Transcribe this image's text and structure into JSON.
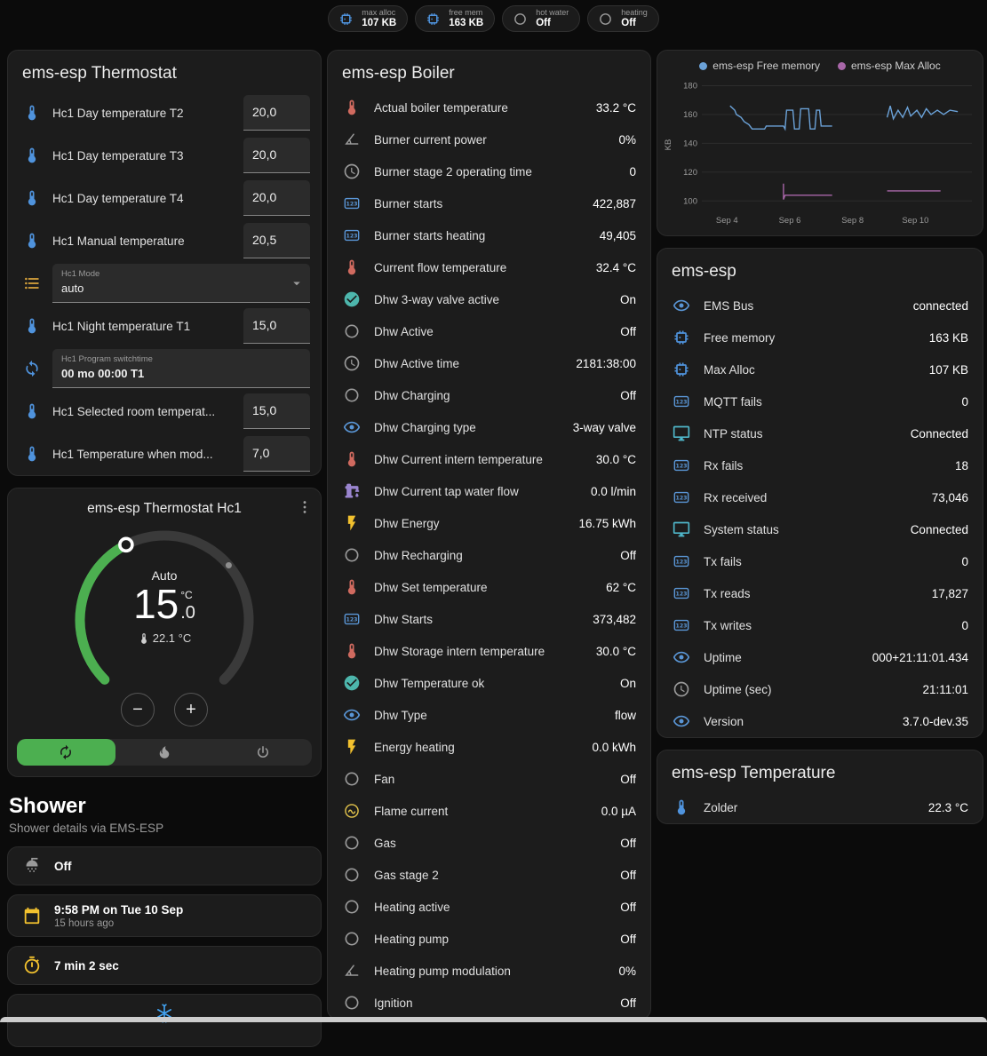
{
  "theme": {
    "background": "#0b0b0b",
    "card": "#1c1c1c",
    "accent_green": "#4caf50",
    "icon_blue": "#4f93dd",
    "icon_grey": "#9a9a9a",
    "icon_amber": "#f2c12e"
  },
  "top_badges": [
    {
      "icon": "chip",
      "icon_color": "#4f93dd",
      "label": "max alloc",
      "value": "107 KB"
    },
    {
      "icon": "chip",
      "icon_color": "#4f93dd",
      "label": "free mem",
      "value": "163 KB"
    },
    {
      "icon": "circle",
      "icon_color": "#9a9a9a",
      "label": "hot water",
      "value": "Off"
    },
    {
      "icon": "circle",
      "icon_color": "#9a9a9a",
      "label": "heating",
      "value": "Off"
    }
  ],
  "thermostat_card": {
    "title": "ems-esp Thermostat",
    "rows": [
      {
        "type": "number",
        "icon": "thermometer",
        "color": "#4f93dd",
        "label": "Hc1 Day temperature T2",
        "value": "20,0"
      },
      {
        "type": "number",
        "icon": "thermometer",
        "color": "#4f93dd",
        "label": "Hc1 Day temperature T3",
        "value": "20,0"
      },
      {
        "type": "number",
        "icon": "thermometer",
        "color": "#4f93dd",
        "label": "Hc1 Day temperature T4",
        "value": "20,0"
      },
      {
        "type": "number",
        "icon": "thermometer",
        "color": "#4f93dd",
        "label": "Hc1 Manual temperature",
        "value": "20,5"
      },
      {
        "type": "select",
        "icon": "list",
        "color": "#d9a43c",
        "label": "Hc1 Mode",
        "field_label": "Hc1 Mode",
        "value": "auto"
      },
      {
        "type": "number",
        "icon": "thermometer",
        "color": "#4f93dd",
        "label": "Hc1 Night temperature T1",
        "value": "15,0"
      },
      {
        "type": "text",
        "icon": "sync",
        "color": "#4f93dd",
        "label": "Hc1 Program switchtime",
        "field_label": "Hc1 Program switchtime",
        "value": "00 mo 00:00 T1"
      },
      {
        "type": "number",
        "icon": "thermometer",
        "color": "#4f93dd",
        "label": "Hc1 Selected room temperat...",
        "value": "15,0"
      },
      {
        "type": "number",
        "icon": "thermometer",
        "color": "#4f93dd",
        "label": "Hc1 Temperature when mod...",
        "value": "7,0"
      }
    ]
  },
  "thermostat_hc1": {
    "title": "ems-esp Thermostat Hc1",
    "mode_label": "Auto",
    "target_int": "15",
    "target_dec": ".0",
    "unit": "°C",
    "current_display": "22.1 °C",
    "min": 5,
    "max": 30,
    "target": 15,
    "current_temp": 22.1,
    "arc_color": "#4caf50",
    "track_color": "#3a3a3a",
    "mode_buttons": [
      {
        "name": "auto",
        "icon": "autorenew",
        "active": true
      },
      {
        "name": "heat",
        "icon": "fire",
        "active": false
      },
      {
        "name": "off",
        "icon": "power",
        "active": false
      }
    ],
    "active_bg": "#4caf50"
  },
  "shower": {
    "title": "Shower",
    "subtitle": "Shower details via EMS-ESP",
    "cards": [
      {
        "icon": "shower",
        "color": "#9a9a9a",
        "primary": "Off",
        "secondary": ""
      },
      {
        "icon": "calendar",
        "color": "#f2c12e",
        "primary": "9:58 PM on Tue 10 Sep",
        "secondary": "15 hours ago"
      },
      {
        "icon": "timer",
        "color": "#f2c12e",
        "primary": "7 min 2 sec",
        "secondary": ""
      },
      {
        "icon": "snowflake",
        "color": "#42a5f5",
        "primary": "",
        "secondary": "",
        "partial": true
      }
    ]
  },
  "boiler_card": {
    "title": "ems-esp Boiler",
    "rows": [
      {
        "icon": "thermometer",
        "color": "#d06a5f",
        "label": "Actual boiler temperature",
        "value": "33.2 °C"
      },
      {
        "icon": "angle",
        "color": "#9a9a9a",
        "label": "Burner current power",
        "value": "0%"
      },
      {
        "icon": "clock",
        "color": "#9a9a9a",
        "label": "Burner stage 2 operating time",
        "value": "0"
      },
      {
        "icon": "counter",
        "color": "#5a96d6",
        "label": "Burner starts",
        "value": "422,887"
      },
      {
        "icon": "counter",
        "color": "#5a96d6",
        "label": "Burner starts heating",
        "value": "49,405"
      },
      {
        "icon": "thermometer",
        "color": "#d06a5f",
        "label": "Current flow temperature",
        "value": "32.4 °C"
      },
      {
        "icon": "check-circle",
        "color": "#4db6ac",
        "label": "Dhw 3-way valve active",
        "value": "On"
      },
      {
        "icon": "circle",
        "color": "#9a9a9a",
        "label": "Dhw Active",
        "value": "Off"
      },
      {
        "icon": "clock",
        "color": "#9a9a9a",
        "label": "Dhw Active time",
        "value": "2181:38:00"
      },
      {
        "icon": "circle",
        "color": "#9a9a9a",
        "label": "Dhw Charging",
        "value": "Off"
      },
      {
        "icon": "eye",
        "color": "#5a96d6",
        "label": "Dhw Charging type",
        "value": "3-way valve"
      },
      {
        "icon": "thermometer",
        "color": "#d06a5f",
        "label": "Dhw Current intern temperature",
        "value": "30.0 °C"
      },
      {
        "icon": "pump",
        "color": "#9a85cf",
        "label": "Dhw Current tap water flow",
        "value": "0.0 l/min"
      },
      {
        "icon": "flash",
        "color": "#f2c12e",
        "label": "Dhw Energy",
        "value": "16.75 kWh"
      },
      {
        "icon": "circle",
        "color": "#9a9a9a",
        "label": "Dhw Recharging",
        "value": "Off"
      },
      {
        "icon": "thermometer",
        "color": "#d06a5f",
        "label": "Dhw Set temperature",
        "value": "62 °C"
      },
      {
        "icon": "counter",
        "color": "#5a96d6",
        "label": "Dhw Starts",
        "value": "373,482"
      },
      {
        "icon": "thermometer",
        "color": "#d06a5f",
        "label": "Dhw Storage intern temperature",
        "value": "30.0 °C"
      },
      {
        "icon": "check-circle",
        "color": "#4db6ac",
        "label": "Dhw Temperature ok",
        "value": "On"
      },
      {
        "icon": "eye",
        "color": "#5a96d6",
        "label": "Dhw Type",
        "value": "flow"
      },
      {
        "icon": "flash",
        "color": "#f2c12e",
        "label": "Energy heating",
        "value": "0.0 kWh"
      },
      {
        "icon": "circle",
        "color": "#9a9a9a",
        "label": "Fan",
        "value": "Off"
      },
      {
        "icon": "current",
        "color": "#e3c44c",
        "label": "Flame current",
        "value": "0.0 µA"
      },
      {
        "icon": "circle",
        "color": "#9a9a9a",
        "label": "Gas",
        "value": "Off"
      },
      {
        "icon": "circle",
        "color": "#9a9a9a",
        "label": "Gas stage 2",
        "value": "Off"
      },
      {
        "icon": "circle",
        "color": "#9a9a9a",
        "label": "Heating active",
        "value": "Off"
      },
      {
        "icon": "circle",
        "color": "#9a9a9a",
        "label": "Heating pump",
        "value": "Off"
      },
      {
        "icon": "angle",
        "color": "#9a9a9a",
        "label": "Heating pump modulation",
        "value": "0%"
      },
      {
        "icon": "circle",
        "color": "#9a9a9a",
        "label": "Ignition",
        "value": "Off"
      }
    ]
  },
  "emsesp_card": {
    "title": "ems-esp",
    "rows": [
      {
        "icon": "eye",
        "color": "#5a96d6",
        "label": "EMS Bus",
        "value": "connected"
      },
      {
        "icon": "chip",
        "color": "#4f93dd",
        "label": "Free memory",
        "value": "163 KB"
      },
      {
        "icon": "chip",
        "color": "#4f93dd",
        "label": "Max Alloc",
        "value": "107 KB"
      },
      {
        "icon": "counter",
        "color": "#5a96d6",
        "label": "MQTT fails",
        "value": "0"
      },
      {
        "icon": "monitor",
        "color": "#4fb6c9",
        "label": "NTP status",
        "value": "Connected"
      },
      {
        "icon": "counter",
        "color": "#5a96d6",
        "label": "Rx fails",
        "value": "18"
      },
      {
        "icon": "counter",
        "color": "#5a96d6",
        "label": "Rx received",
        "value": "73,046"
      },
      {
        "icon": "monitor",
        "color": "#4fb6c9",
        "label": "System status",
        "value": "Connected"
      },
      {
        "icon": "counter",
        "color": "#5a96d6",
        "label": "Tx fails",
        "value": "0"
      },
      {
        "icon": "counter",
        "color": "#5a96d6",
        "label": "Tx reads",
        "value": "17,827"
      },
      {
        "icon": "counter",
        "color": "#5a96d6",
        "label": "Tx writes",
        "value": "0"
      },
      {
        "icon": "eye",
        "color": "#5a96d6",
        "label": "Uptime",
        "value": "000+21:11:01.434"
      },
      {
        "icon": "clock",
        "color": "#9a9a9a",
        "label": "Uptime (sec)",
        "value": "21:11:01"
      },
      {
        "icon": "eye",
        "color": "#5a96d6",
        "label": "Version",
        "value": "3.7.0-dev.35"
      }
    ]
  },
  "temperature_card": {
    "title": "ems-esp Temperature",
    "rows": [
      {
        "icon": "thermometer",
        "color": "#4f93dd",
        "label": "Zolder",
        "value": "22.3 °C"
      }
    ]
  },
  "chart_data": {
    "type": "line",
    "title": "",
    "ylabel": "KB",
    "ylim": [
      94,
      184
    ],
    "yticks": [
      100,
      120,
      140,
      160,
      180
    ],
    "x_domain": [
      0,
      8.6
    ],
    "xticks": [
      {
        "pos": 0.8,
        "label": "Sep 4"
      },
      {
        "pos": 2.8,
        "label": "Sep 6"
      },
      {
        "pos": 4.8,
        "label": "Sep 8"
      },
      {
        "pos": 6.8,
        "label": "Sep 10"
      }
    ],
    "grid": true,
    "legend_position": "top",
    "legend": [
      {
        "name": "ems-esp Free memory",
        "color": "#6ba2d8"
      },
      {
        "name": "ems-esp Max Alloc",
        "color": "#a866a8"
      }
    ],
    "series": [
      {
        "name": "ems-esp Free memory",
        "color": "#6ba2d8",
        "points": [
          [
            0.9,
            166
          ],
          [
            1.05,
            163
          ],
          [
            1.1,
            160
          ],
          [
            1.25,
            158
          ],
          [
            1.35,
            155
          ],
          [
            1.5,
            153
          ],
          [
            1.6,
            150
          ],
          [
            2.0,
            150
          ],
          [
            2.05,
            152
          ],
          [
            2.6,
            152
          ],
          [
            2.65,
            150
          ],
          [
            2.7,
            163
          ],
          [
            2.9,
            163
          ],
          [
            2.95,
            150
          ],
          [
            3.1,
            150
          ],
          [
            3.15,
            164
          ],
          [
            3.4,
            164
          ],
          [
            3.45,
            150
          ],
          [
            3.6,
            150
          ],
          [
            3.65,
            163
          ],
          [
            3.75,
            163
          ],
          [
            3.8,
            152
          ],
          [
            4.15,
            152
          ],
          null,
          [
            5.9,
            158
          ],
          [
            6.0,
            166
          ],
          [
            6.1,
            157
          ],
          [
            6.25,
            163
          ],
          [
            6.4,
            158
          ],
          [
            6.55,
            165
          ],
          [
            6.65,
            159
          ],
          [
            6.85,
            163
          ],
          [
            7.0,
            158
          ],
          [
            7.15,
            164
          ],
          [
            7.3,
            160
          ],
          [
            7.5,
            163
          ],
          [
            7.7,
            160
          ],
          [
            7.9,
            163
          ],
          [
            8.15,
            162
          ]
        ]
      },
      {
        "name": "ems-esp Max Alloc",
        "color": "#a866a8",
        "points": [
          [
            2.6,
            112
          ],
          [
            2.6,
            101
          ],
          [
            2.65,
            104
          ],
          [
            4.15,
            104
          ],
          null,
          [
            5.9,
            107
          ],
          [
            7.6,
            107
          ]
        ]
      }
    ]
  }
}
